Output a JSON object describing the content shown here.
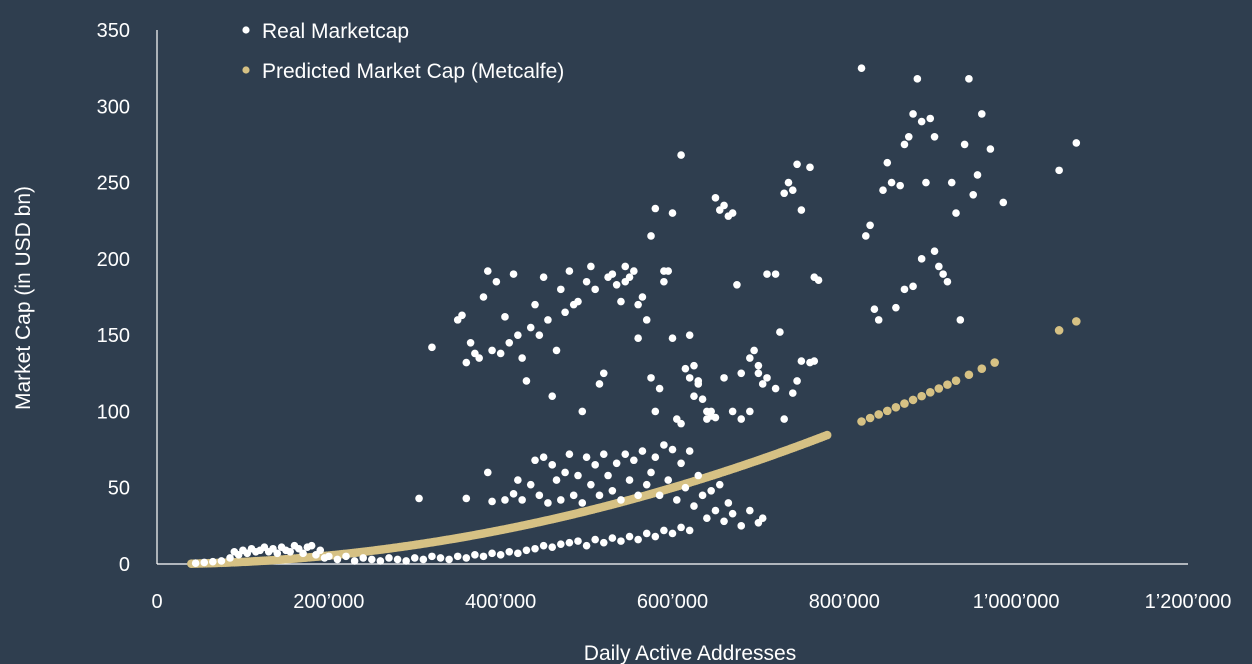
{
  "chart_data": {
    "type": "scatter",
    "title": "",
    "xlabel": "Daily Active Addresses",
    "ylabel": "Market Cap (in USD bn)",
    "xlim": [
      0,
      1200000
    ],
    "ylim": [
      0,
      350
    ],
    "x_ticks": [
      {
        "value": 0,
        "label": "0"
      },
      {
        "value": 200000,
        "label": "200’000"
      },
      {
        "value": 400000,
        "label": "400’000"
      },
      {
        "value": 600000,
        "label": "600’000"
      },
      {
        "value": 800000,
        "label": "800’000"
      },
      {
        "value": 1000000,
        "label": "1’000’000"
      },
      {
        "value": 1200000,
        "label": "1’200’000"
      }
    ],
    "y_ticks": [
      {
        "value": 0,
        "label": "0"
      },
      {
        "value": 50,
        "label": "50"
      },
      {
        "value": 100,
        "label": "100"
      },
      {
        "value": 150,
        "label": "150"
      },
      {
        "value": 200,
        "label": "200"
      },
      {
        "value": 250,
        "label": "250"
      },
      {
        "value": 300,
        "label": "300"
      },
      {
        "value": 350,
        "label": "350"
      }
    ],
    "grid": false,
    "legend_position": "top-left",
    "series": [
      {
        "name": "Real Marketcap",
        "color": "#ffffff",
        "points": [
          [
            45000,
            0.5
          ],
          [
            55000,
            1
          ],
          [
            65000,
            1.5
          ],
          [
            75000,
            2
          ],
          [
            85000,
            4
          ],
          [
            90000,
            8
          ],
          [
            95000,
            6
          ],
          [
            100000,
            9
          ],
          [
            105000,
            7
          ],
          [
            110000,
            10
          ],
          [
            115000,
            8
          ],
          [
            120000,
            9
          ],
          [
            125000,
            11
          ],
          [
            130000,
            8
          ],
          [
            135000,
            10
          ],
          [
            140000,
            7
          ],
          [
            145000,
            11
          ],
          [
            150000,
            9
          ],
          [
            155000,
            8
          ],
          [
            160000,
            12
          ],
          [
            165000,
            10
          ],
          [
            170000,
            7
          ],
          [
            175000,
            11
          ],
          [
            180000,
            12
          ],
          [
            185000,
            6
          ],
          [
            190000,
            9
          ],
          [
            195000,
            4
          ],
          [
            200000,
            5
          ],
          [
            210000,
            3
          ],
          [
            220000,
            5
          ],
          [
            230000,
            2
          ],
          [
            240000,
            4
          ],
          [
            250000,
            3
          ],
          [
            260000,
            2
          ],
          [
            270000,
            4
          ],
          [
            280000,
            3
          ],
          [
            290000,
            2
          ],
          [
            300000,
            4
          ],
          [
            310000,
            3
          ],
          [
            320000,
            5
          ],
          [
            330000,
            4
          ],
          [
            340000,
            3
          ],
          [
            350000,
            5
          ],
          [
            360000,
            4
          ],
          [
            370000,
            6
          ],
          [
            380000,
            5
          ],
          [
            390000,
            7
          ],
          [
            400000,
            6
          ],
          [
            410000,
            8
          ],
          [
            420000,
            7
          ],
          [
            430000,
            9
          ],
          [
            440000,
            10
          ],
          [
            450000,
            12
          ],
          [
            460000,
            11
          ],
          [
            470000,
            13
          ],
          [
            480000,
            14
          ],
          [
            490000,
            15
          ],
          [
            500000,
            12
          ],
          [
            510000,
            16
          ],
          [
            520000,
            14
          ],
          [
            530000,
            17
          ],
          [
            540000,
            15
          ],
          [
            550000,
            18
          ],
          [
            560000,
            16
          ],
          [
            570000,
            20
          ],
          [
            580000,
            18
          ],
          [
            590000,
            22
          ],
          [
            600000,
            20
          ],
          [
            610000,
            24
          ],
          [
            620000,
            22
          ],
          [
            305000,
            43
          ],
          [
            360000,
            43
          ],
          [
            385000,
            60
          ],
          [
            390000,
            41
          ],
          [
            405000,
            42
          ],
          [
            415000,
            46
          ],
          [
            420000,
            55
          ],
          [
            425000,
            42
          ],
          [
            435000,
            52
          ],
          [
            440000,
            68
          ],
          [
            445000,
            45
          ],
          [
            450000,
            70
          ],
          [
            455000,
            40
          ],
          [
            460000,
            65
          ],
          [
            465000,
            55
          ],
          [
            470000,
            42
          ],
          [
            475000,
            60
          ],
          [
            480000,
            72
          ],
          [
            485000,
            45
          ],
          [
            490000,
            58
          ],
          [
            495000,
            40
          ],
          [
            500000,
            70
          ],
          [
            505000,
            52
          ],
          [
            510000,
            65
          ],
          [
            515000,
            45
          ],
          [
            520000,
            72
          ],
          [
            525000,
            58
          ],
          [
            530000,
            48
          ],
          [
            535000,
            66
          ],
          [
            540000,
            42
          ],
          [
            545000,
            72
          ],
          [
            550000,
            55
          ],
          [
            555000,
            68
          ],
          [
            560000,
            45
          ],
          [
            565000,
            74
          ],
          [
            570000,
            52
          ],
          [
            575000,
            60
          ],
          [
            580000,
            70
          ],
          [
            585000,
            45
          ],
          [
            590000,
            78
          ],
          [
            595000,
            55
          ],
          [
            600000,
            75
          ],
          [
            605000,
            42
          ],
          [
            610000,
            66
          ],
          [
            615000,
            50
          ],
          [
            620000,
            74
          ],
          [
            625000,
            38
          ],
          [
            630000,
            58
          ],
          [
            635000,
            45
          ],
          [
            640000,
            30
          ],
          [
            645000,
            48
          ],
          [
            650000,
            35
          ],
          [
            655000,
            52
          ],
          [
            660000,
            28
          ],
          [
            665000,
            40
          ],
          [
            670000,
            33
          ],
          [
            680000,
            25
          ],
          [
            690000,
            35
          ],
          [
            700000,
            27
          ],
          [
            705000,
            30
          ],
          [
            320000,
            142
          ],
          [
            350000,
            160
          ],
          [
            355000,
            163
          ],
          [
            360000,
            132
          ],
          [
            365000,
            145
          ],
          [
            370000,
            138
          ],
          [
            375000,
            135
          ],
          [
            380000,
            175
          ],
          [
            385000,
            192
          ],
          [
            390000,
            140
          ],
          [
            395000,
            185
          ],
          [
            400000,
            138
          ],
          [
            405000,
            162
          ],
          [
            410000,
            145
          ],
          [
            415000,
            190
          ],
          [
            420000,
            150
          ],
          [
            425000,
            135
          ],
          [
            430000,
            120
          ],
          [
            435000,
            155
          ],
          [
            440000,
            170
          ],
          [
            445000,
            150
          ],
          [
            450000,
            188
          ],
          [
            455000,
            160
          ],
          [
            460000,
            110
          ],
          [
            465000,
            140
          ],
          [
            470000,
            180
          ],
          [
            475000,
            165
          ],
          [
            480000,
            192
          ],
          [
            485000,
            170
          ],
          [
            490000,
            172
          ],
          [
            495000,
            100
          ],
          [
            500000,
            185
          ],
          [
            505000,
            195
          ],
          [
            510000,
            180
          ],
          [
            515000,
            118
          ],
          [
            520000,
            125
          ],
          [
            525000,
            188
          ],
          [
            530000,
            190
          ],
          [
            535000,
            183
          ],
          [
            540000,
            172
          ],
          [
            545000,
            185
          ],
          [
            550000,
            188
          ],
          [
            555000,
            192
          ],
          [
            560000,
            170
          ],
          [
            565000,
            175
          ],
          [
            570000,
            160
          ],
          [
            575000,
            122
          ],
          [
            580000,
            100
          ],
          [
            585000,
            115
          ],
          [
            590000,
            185
          ],
          [
            595000,
            192
          ],
          [
            600000,
            148
          ],
          [
            605000,
            95
          ],
          [
            610000,
            92
          ],
          [
            615000,
            128
          ],
          [
            620000,
            122
          ],
          [
            625000,
            130
          ],
          [
            630000,
            118
          ],
          [
            635000,
            108
          ],
          [
            640000,
            100
          ],
          [
            645000,
            97
          ],
          [
            650000,
            96
          ],
          [
            660000,
            122
          ],
          [
            670000,
            100
          ],
          [
            680000,
            95
          ],
          [
            690000,
            100
          ],
          [
            700000,
            130
          ],
          [
            705000,
            118
          ],
          [
            710000,
            122
          ],
          [
            720000,
            115
          ],
          [
            725000,
            152
          ],
          [
            730000,
            95
          ],
          [
            740000,
            112
          ],
          [
            745000,
            120
          ],
          [
            750000,
            133
          ],
          [
            760000,
            132
          ],
          [
            765000,
            133
          ],
          [
            545000,
            195
          ],
          [
            560000,
            148
          ],
          [
            575000,
            215
          ],
          [
            580000,
            233
          ],
          [
            590000,
            192
          ],
          [
            600000,
            230
          ],
          [
            610000,
            268
          ],
          [
            620000,
            150
          ],
          [
            625000,
            110
          ],
          [
            630000,
            120
          ],
          [
            640000,
            95
          ],
          [
            645000,
            100
          ],
          [
            650000,
            240
          ],
          [
            655000,
            232
          ],
          [
            660000,
            235
          ],
          [
            665000,
            228
          ],
          [
            670000,
            230
          ],
          [
            675000,
            183
          ],
          [
            680000,
            125
          ],
          [
            690000,
            135
          ],
          [
            695000,
            140
          ],
          [
            700000,
            125
          ],
          [
            710000,
            190
          ],
          [
            720000,
            190
          ],
          [
            730000,
            243
          ],
          [
            735000,
            250
          ],
          [
            740000,
            245
          ],
          [
            745000,
            262
          ],
          [
            750000,
            232
          ],
          [
            760000,
            260
          ],
          [
            765000,
            188
          ],
          [
            770000,
            186
          ],
          [
            820000,
            325
          ],
          [
            825000,
            215
          ],
          [
            830000,
            222
          ],
          [
            835000,
            167
          ],
          [
            840000,
            160
          ],
          [
            845000,
            245
          ],
          [
            850000,
            263
          ],
          [
            855000,
            250
          ],
          [
            860000,
            168
          ],
          [
            865000,
            248
          ],
          [
            870000,
            275
          ],
          [
            875000,
            280
          ],
          [
            880000,
            295
          ],
          [
            885000,
            318
          ],
          [
            890000,
            290
          ],
          [
            895000,
            250
          ],
          [
            900000,
            292
          ],
          [
            905000,
            280
          ],
          [
            910000,
            195
          ],
          [
            915000,
            190
          ],
          [
            920000,
            185
          ],
          [
            925000,
            250
          ],
          [
            930000,
            230
          ],
          [
            935000,
            160
          ],
          [
            940000,
            275
          ],
          [
            945000,
            318
          ],
          [
            950000,
            242
          ],
          [
            955000,
            255
          ],
          [
            960000,
            295
          ],
          [
            970000,
            272
          ],
          [
            985000,
            237
          ],
          [
            1050000,
            258
          ],
          [
            1070000,
            276
          ],
          [
            870000,
            180
          ],
          [
            880000,
            182
          ],
          [
            890000,
            200
          ],
          [
            905000,
            205
          ]
        ]
      },
      {
        "name": "Predicted Market Cap (Metcalfe)",
        "color": "#d6c184",
        "curve": {
          "coefficient": 1.389e-10,
          "exponent": 2
        },
        "x_range": [
          40000,
          780000
        ],
        "x_step": 2500,
        "extra_x": [
          820000,
          830000,
          840000,
          850000,
          860000,
          870000,
          880000,
          890000,
          900000,
          910000,
          920000,
          930000,
          945000,
          960000,
          975000,
          1050000,
          1070000
        ]
      }
    ]
  }
}
